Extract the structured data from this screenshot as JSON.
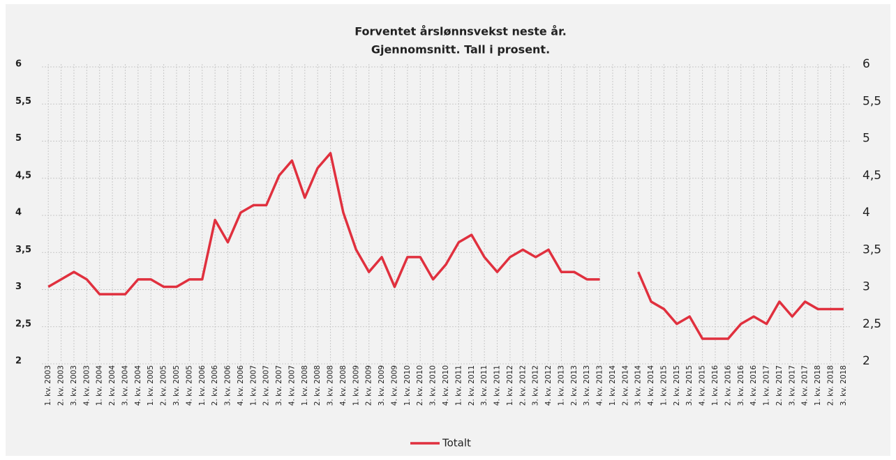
{
  "chart_data": {
    "type": "line",
    "title": "Forventet årslønnsvekst neste år.",
    "subtitle": "Gjennomsnitt. Tall i prosent.",
    "categories": [
      "1. kv. 2003",
      "2. kv. 2003",
      "3. kv. 2003",
      "4. kv. 2003",
      "1. kv. 2004",
      "2. kv. 2004",
      "3. kv. 2004",
      "4. kv. 2004",
      "1. kv. 2005",
      "2. kv. 2005",
      "3. kv. 2005",
      "4. kv. 2005",
      "1. kv. 2006",
      "2. kv. 2006",
      "3. kv. 2006",
      "4. kv. 2006",
      "1. kv. 2007",
      "2. kv. 2007",
      "3. kv. 2007",
      "4. kv. 2007",
      "1. kv. 2008",
      "2. kv. 2008",
      "3. kv. 2008",
      "4. kv. 2008",
      "1. kv. 2009",
      "2. kv. 2009",
      "3. kv. 2009",
      "4. kv. 2009",
      "1. kv. 2010",
      "2. kv. 2010",
      "3. kv. 2010",
      "4. kv. 2010",
      "1. kv. 2011",
      "2. kv. 2011",
      "3. kv. 2011",
      "4. kv. 2011",
      "1. kv. 2012",
      "2. kv. 2012",
      "3. kv. 2012",
      "4. kv. 2012",
      "1. kv. 2013",
      "2. kv. 2013",
      "3. kv. 2013",
      "4. kv. 2013",
      "1. kv. 2014",
      "2. kv. 2014",
      "3. kv. 2014",
      "4. kv. 2014",
      "1. kv. 2015",
      "2. kv. 2015",
      "3. kv. 2015",
      "4. kv. 2015",
      "1. kv. 2016",
      "2. kv. 2016",
      "3. kv. 2016",
      "4. kv. 2016",
      "1. kv. 2017",
      "2. kv. 2017",
      "3. kv. 2017",
      "4. kv. 2017",
      "1. kv. 2018",
      "2. kv. 2018",
      "3. kv. 2018"
    ],
    "series": [
      {
        "name": "Totalt",
        "color": "#e0303e",
        "values": [
          3.0,
          3.1,
          3.2,
          3.1,
          2.9,
          2.9,
          2.9,
          3.1,
          3.1,
          3.0,
          3.0,
          3.1,
          3.1,
          3.9,
          3.6,
          4.0,
          4.1,
          4.1,
          4.5,
          4.7,
          4.2,
          4.6,
          4.8,
          4.0,
          3.5,
          3.2,
          3.4,
          3.0,
          3.4,
          3.4,
          3.1,
          3.3,
          3.6,
          3.7,
          3.4,
          3.2,
          3.4,
          3.5,
          3.4,
          3.5,
          3.2,
          3.2,
          3.1,
          3.1,
          null,
          null,
          3.2,
          2.8,
          2.7,
          2.5,
          2.6,
          2.3,
          2.3,
          2.3,
          2.5,
          2.6,
          2.5,
          2.8,
          2.6,
          2.8,
          2.7,
          2.7,
          2.7
        ]
      }
    ],
    "ylim": [
      2,
      6
    ],
    "yticks": [
      2,
      {
        "value": 2.5,
        "label": "2,5"
      },
      3,
      {
        "value": 3.5,
        "label": "3,5"
      },
      4,
      {
        "value": 4.5,
        "label": "4,5"
      },
      5,
      {
        "value": 5.5,
        "label": "5,5"
      },
      6
    ],
    "y2lim": [
      2,
      6
    ],
    "y2ticks": [
      2,
      {
        "value": 2.5,
        "label": "2,5"
      },
      3,
      {
        "value": 3.5,
        "label": "3,5"
      },
      4,
      {
        "value": 4.5,
        "label": "4,5"
      },
      5,
      {
        "value": 5.5,
        "label": "5,5"
      },
      6
    ],
    "grid": true,
    "legend": "bottom"
  }
}
